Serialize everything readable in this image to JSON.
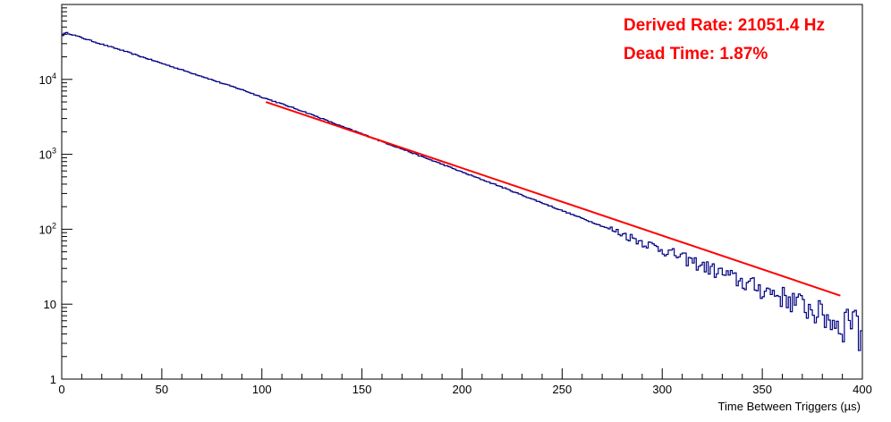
{
  "chart_data": {
    "type": "line",
    "title": "",
    "xlabel": "Time Between Triggers (µs)",
    "ylabel": "",
    "xlim": [
      0,
      400
    ],
    "ylim": [
      1,
      100000
    ],
    "y_scale": "log",
    "grid": false,
    "x_ticks": [
      0,
      50,
      100,
      150,
      200,
      250,
      300,
      350,
      400
    ],
    "x_tick_labels": [
      "0",
      "50",
      "100",
      "150",
      "200",
      "250",
      "300",
      "350",
      "400"
    ],
    "y_ticks": [
      1,
      10,
      100,
      1000,
      10000
    ],
    "y_tick_labels": [
      {
        "base": "1",
        "exp": ""
      },
      {
        "base": "10",
        "exp": ""
      },
      {
        "base": "10",
        "exp": "2"
      },
      {
        "base": "10",
        "exp": "3"
      },
      {
        "base": "10",
        "exp": "4"
      }
    ],
    "annotations": [
      "Derived Rate: 21051.4 Hz",
      "Dead Time: 1.87%"
    ],
    "colors": {
      "histogram": "#000080",
      "fit": "#ff0000",
      "annotation": "#ff0000",
      "frame": "#000000"
    },
    "series": [
      {
        "type": "step",
        "bin_width": 1,
        "x": [
          0,
          2,
          5,
          10,
          20,
          30,
          40,
          50,
          60,
          70,
          80,
          90,
          100,
          110,
          120,
          130,
          140,
          150,
          160,
          170,
          180,
          190,
          200,
          210,
          220,
          230,
          240,
          250,
          260,
          270,
          280,
          290,
          300,
          310,
          320,
          330,
          340,
          350,
          360,
          370,
          380,
          390,
          393,
          395,
          397,
          398,
          399
        ],
        "values": [
          38000,
          42000,
          40000,
          36000,
          29500,
          24500,
          20000,
          16400,
          13400,
          11000,
          8900,
          7300,
          5800,
          4700,
          3800,
          3000,
          2350,
          1880,
          1480,
          1180,
          930,
          740,
          580,
          460,
          365,
          285,
          225,
          177,
          140,
          110,
          87,
          68,
          54,
          42,
          33,
          26,
          20,
          16,
          13,
          10,
          7.5,
          5,
          8,
          6,
          12,
          2,
          5
        ]
      },
      {
        "type": "fit",
        "x": [
          102,
          389
        ],
        "values": [
          5000,
          13
        ]
      }
    ]
  }
}
